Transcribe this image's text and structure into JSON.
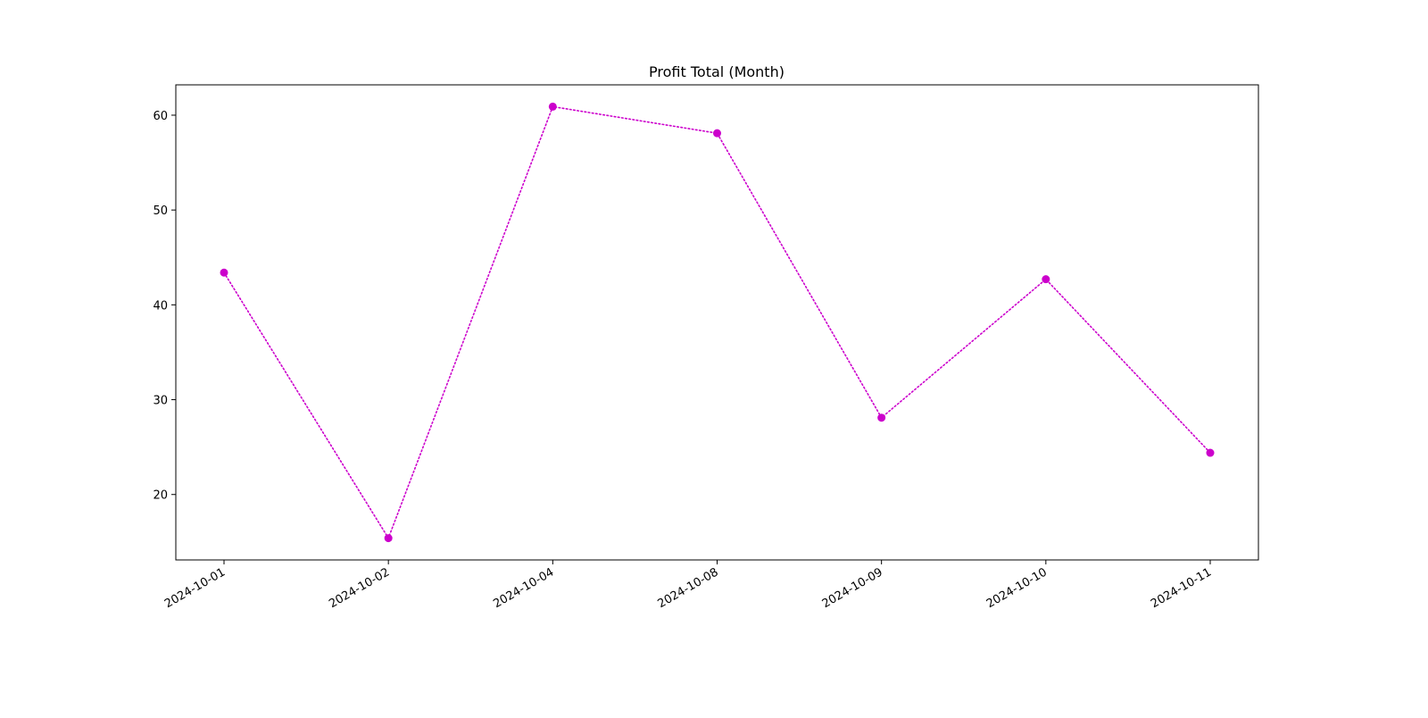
{
  "chart_data": {
    "type": "line",
    "title": "Profit Total (Month)",
    "xlabel": "",
    "ylabel": "",
    "categories": [
      "2024-10-01",
      "2024-10-02",
      "2024-10-04",
      "2024-10-08",
      "2024-10-09",
      "2024-10-10",
      "2024-10-11"
    ],
    "series": [
      {
        "values": [
          43.4,
          15.4,
          60.9,
          58.1,
          28.1,
          42.7,
          24.4
        ],
        "color": "#cc00cc",
        "line_style": "dotted",
        "marker": "circle"
      }
    ],
    "y_ticks": [
      20,
      30,
      40,
      50,
      60
    ],
    "ylim": [
      13.1,
      63.2
    ],
    "grid": false,
    "legend": "none",
    "x_tick_rotation": "slanted"
  }
}
